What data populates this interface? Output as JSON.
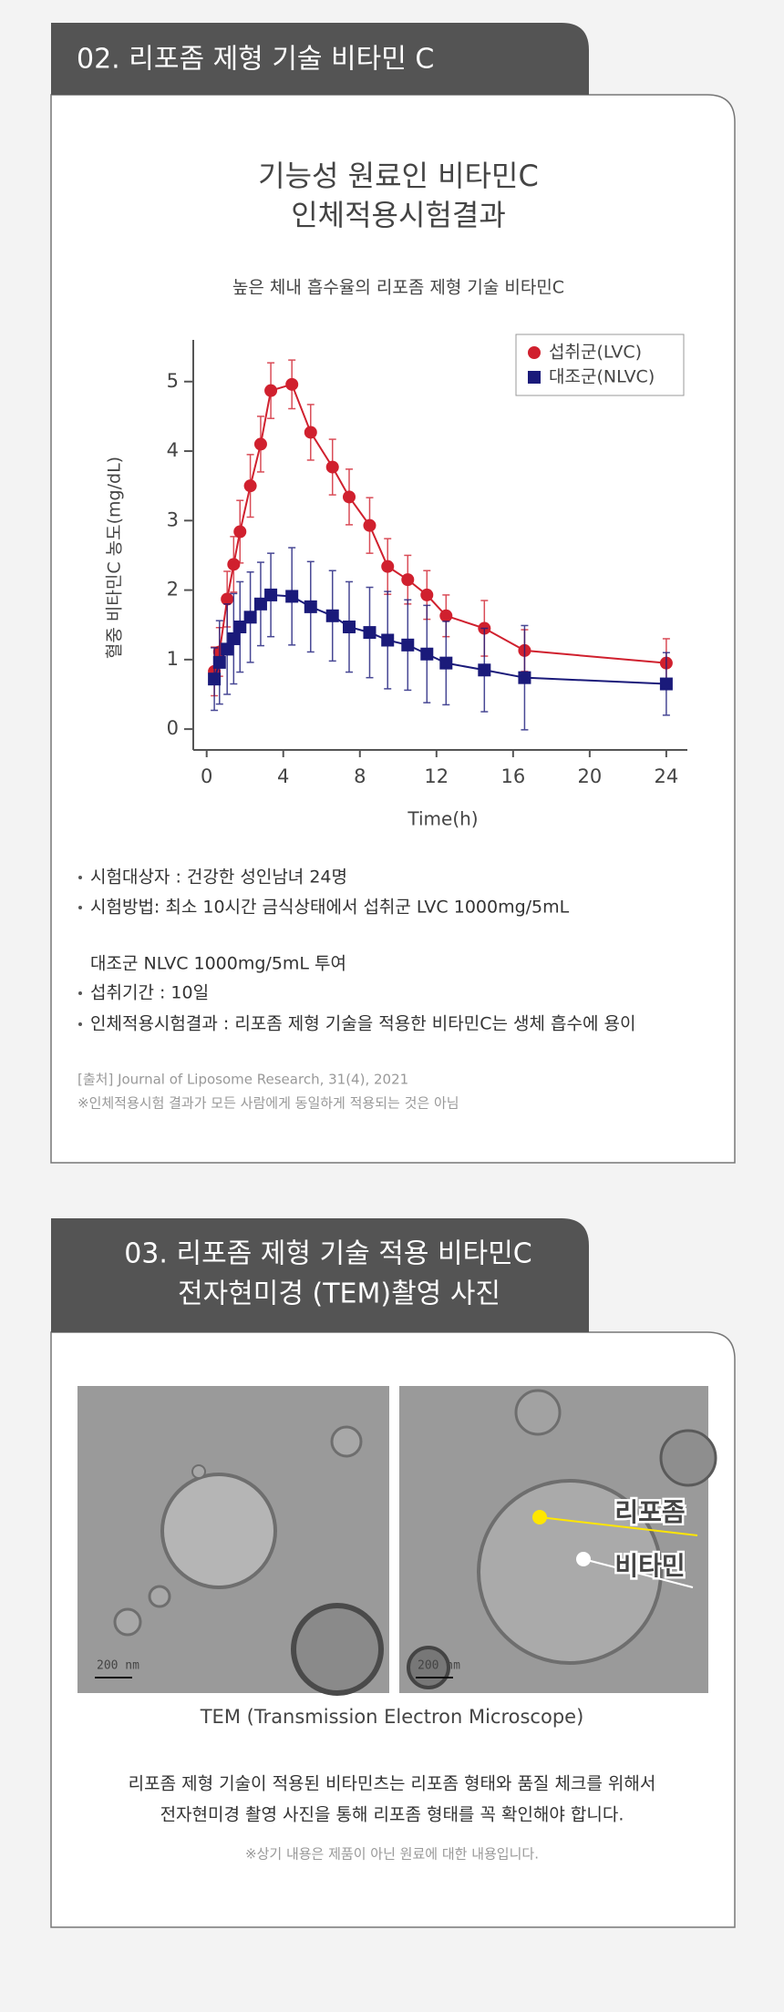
{
  "section1": {
    "heading": "02. 리포좀 제형 기술 비타민 C"
  },
  "chart_data": {
    "type": "line",
    "title": [
      "기능성 원료인 비타민C",
      "인체적용시험결과"
    ],
    "subtitle": "높은 체내 흡수율의 리포좀 제형 기술 비타민C",
    "y_label": "혈중 비타민C 농도(mg/dL)",
    "x_label": "Time(h)",
    "x": [
      0.4,
      0.67,
      1.07,
      1.41,
      1.74,
      2.28,
      2.82,
      3.35,
      4.45,
      5.43,
      6.57,
      7.44,
      8.51,
      9.45,
      10.5,
      11.5,
      12.5,
      14.5,
      16.6,
      24
    ],
    "series": [
      {
        "name": "섭취군(LVC)",
        "color": "#d0202e",
        "marker": "circle",
        "values": [
          0.83,
          1.11,
          1.87,
          2.37,
          2.84,
          3.5,
          4.1,
          4.87,
          4.96,
          4.27,
          3.77,
          3.34,
          2.93,
          2.34,
          2.15,
          1.93,
          1.63,
          1.45,
          1.13,
          0.95
        ],
        "error": [
          0.35,
          0.35,
          0.4,
          0.4,
          0.45,
          0.45,
          0.4,
          0.4,
          0.35,
          0.4,
          0.4,
          0.4,
          0.4,
          0.4,
          0.35,
          0.35,
          0.3,
          0.4,
          0.3,
          0.35
        ]
      },
      {
        "name": "대조군(NLVC)",
        "color": "#1a1a7a",
        "marker": "square",
        "values": [
          0.72,
          0.96,
          1.15,
          1.3,
          1.47,
          1.61,
          1.8,
          1.93,
          1.91,
          1.76,
          1.63,
          1.47,
          1.39,
          1.28,
          1.21,
          1.08,
          0.95,
          0.85,
          0.74,
          0.65
        ],
        "error": [
          0.45,
          0.6,
          0.65,
          0.65,
          0.65,
          0.65,
          0.6,
          0.6,
          0.7,
          0.65,
          0.65,
          0.65,
          0.65,
          0.7,
          0.65,
          0.7,
          0.6,
          0.6,
          0.75,
          0.45
        ]
      }
    ],
    "xlim": [
      -0.7,
      25.1
    ],
    "ylim": [
      -0.3,
      5.6
    ],
    "xticks": [
      0,
      4,
      8,
      12,
      16,
      20,
      24
    ],
    "yticks": [
      0,
      1,
      2,
      3,
      4,
      5
    ],
    "legend": "top-right"
  },
  "study_info": [
    "시험대상자 : 건강한 성인남녀 24명",
    "시험방법:  최소 10시간 금식상태에서 섭취군 LVC 1000mg/5mL",
    "대조군 NLVC 1000mg/5mL 투여",
    "섭취기간 : 10일",
    "인체적용시험결과 : 리포좀 제형 기술을 적용한 비타민C는 생체 흡수에 용이"
  ],
  "source": "[출처] Journal of Liposome Research, 31(4), 2021",
  "disclaimer": "※인체적용시험 결과가 모든 사람에게 동일하게 적용되는 것은 아님",
  "section2": {
    "heading": [
      "03.  리포좀 제형 기술 적용 비타민C",
      "전자현미경 (TEM)촬영 사진"
    ],
    "images": [
      {
        "scale_bar": "200 nm"
      },
      {
        "scale_bar": "200 nm",
        "labels": [
          "리포좀",
          "비타민"
        ]
      }
    ],
    "caption": "TEM (Transmission Electron Microscope)",
    "description": [
      "리포좀 제형 기술이 적용된 비타민츠는 리포좀 형태와 품질 체크를 위해서",
      "전자현미경 촬영 사진을 통해 리포좀 형태를 꼭 확인해야 합니다."
    ],
    "note": "※상기 내용은 제품이 아닌 원료에 대한 내용입니다."
  }
}
